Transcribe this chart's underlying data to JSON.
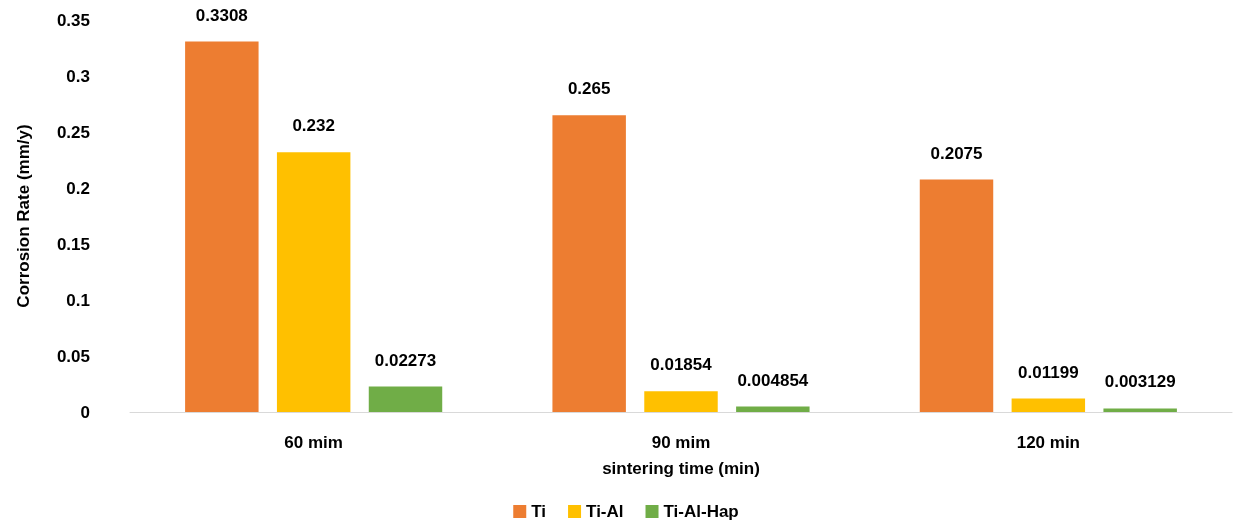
{
  "chart_data": {
    "type": "bar",
    "xlabel": "sintering time (min)",
    "ylabel": "Corrosion Rate (mm/y)",
    "categories": [
      "60 mim",
      "90 mim",
      "120 min"
    ],
    "series": [
      {
        "name": "Ti",
        "color": "#ed7d31",
        "values": [
          0.3308,
          0.265,
          0.2075
        ]
      },
      {
        "name": "Ti-Al",
        "color": "#ffc000",
        "values": [
          0.232,
          0.01854,
          0.01199
        ]
      },
      {
        "name": "Ti-Al-Hap",
        "color": "#70ad47",
        "values": [
          0.02273,
          0.004854,
          0.003129
        ]
      }
    ],
    "ylim": [
      0,
      0.35
    ],
    "yticks": [
      0,
      0.05,
      0.1,
      0.15,
      0.2,
      0.25,
      0.3,
      0.35
    ],
    "grid": false,
    "legend": "bottom",
    "data_labels": true
  }
}
